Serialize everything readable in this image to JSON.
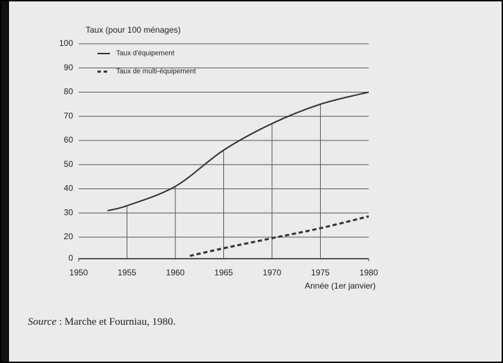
{
  "chart_data": {
    "type": "line",
    "y_label": "Taux (pour 100 ménages)",
    "x_label": "Année (1er janvier)",
    "series": [
      {
        "name": "Taux d'équipement",
        "color": "#333333",
        "style": "solid",
        "x": [
          1953,
          1955,
          1960,
          1965,
          1970,
          1975,
          1980
        ],
        "values": [
          31,
          33,
          41,
          56,
          67,
          75,
          80
        ]
      },
      {
        "name": "Taux de multi-équipement",
        "color": "#333333",
        "style": "dashed",
        "x": [
          1961.5,
          1965,
          1970,
          1975,
          1980
        ],
        "values": [
          2.6,
          9.7,
          19,
          23.7,
          28.6
        ]
      }
    ],
    "xlim": [
      1950,
      1980
    ],
    "xticks": [
      1950,
      1955,
      1960,
      1965,
      1970,
      1975,
      1980
    ],
    "ylim": [
      0,
      100
    ],
    "yticks": [
      0,
      20,
      30,
      40,
      50,
      60,
      70,
      80,
      90,
      100
    ],
    "grid": true
  },
  "source": {
    "label": "Source",
    "text": " : Marche et Fourniau, 1980."
  }
}
